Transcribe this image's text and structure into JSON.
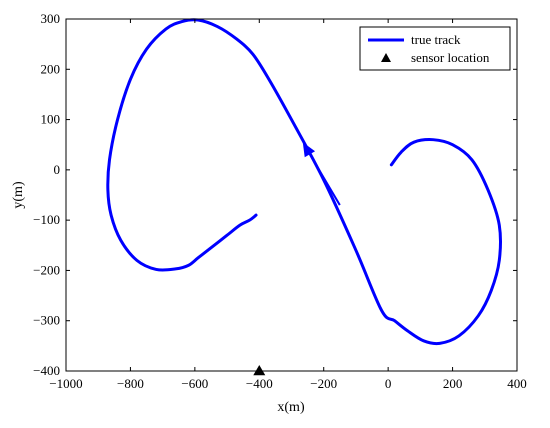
{
  "chart_data": {
    "type": "line",
    "xlabel": "x(m)",
    "ylabel": "y(m)",
    "xlim": [
      -1000,
      400
    ],
    "ylim": [
      -400,
      300
    ],
    "xticks": [
      -1000,
      -800,
      -600,
      -400,
      -200,
      0,
      200,
      400
    ],
    "yticks": [
      -400,
      -300,
      -200,
      -100,
      0,
      100,
      200,
      300
    ],
    "xtick_labels": [
      "−1000",
      "−800",
      "−600",
      "−400",
      "−200",
      "0",
      "200",
      "400"
    ],
    "ytick_labels": [
      "−400",
      "−300",
      "−200",
      "−100",
      "0",
      "100",
      "200",
      "300"
    ],
    "grid": false,
    "legend_position": "top-right",
    "colors": {
      "track": "#0000ff",
      "sensor": "#000000"
    },
    "series": [
      {
        "name": "true track",
        "style": "line",
        "x": [
          10,
          40,
          80,
          140,
          200,
          260,
          310,
          345,
          345,
          320,
          280,
          220,
          160,
          110,
          60,
          20,
          -20,
          -100,
          -200,
          -300,
          -370,
          -420,
          -470,
          -530,
          -590,
          -640,
          -690,
          -750,
          -800,
          -840,
          -865,
          -870,
          -860,
          -830,
          -780,
          -720,
          -660,
          -620,
          -590,
          -550,
          -500,
          -460,
          -430,
          -410
        ],
        "y": [
          10,
          35,
          55,
          60,
          50,
          20,
          -40,
          -110,
          -180,
          -240,
          -290,
          -330,
          -345,
          -340,
          -320,
          -300,
          -280,
          -160,
          -20,
          100,
          180,
          230,
          260,
          285,
          298,
          295,
          280,
          240,
          180,
          100,
          20,
          -40,
          -90,
          -140,
          -180,
          -198,
          -197,
          -190,
          -175,
          -155,
          -130,
          -110,
          -100,
          -90
        ]
      },
      {
        "name": "sensor location",
        "style": "marker",
        "marker": "triangle",
        "x": [
          -400
        ],
        "y": [
          -400
        ]
      }
    ],
    "annotations": [
      {
        "type": "arrow",
        "from": [
          -150,
          -70
        ],
        "to": [
          -265,
          55
        ]
      }
    ]
  }
}
